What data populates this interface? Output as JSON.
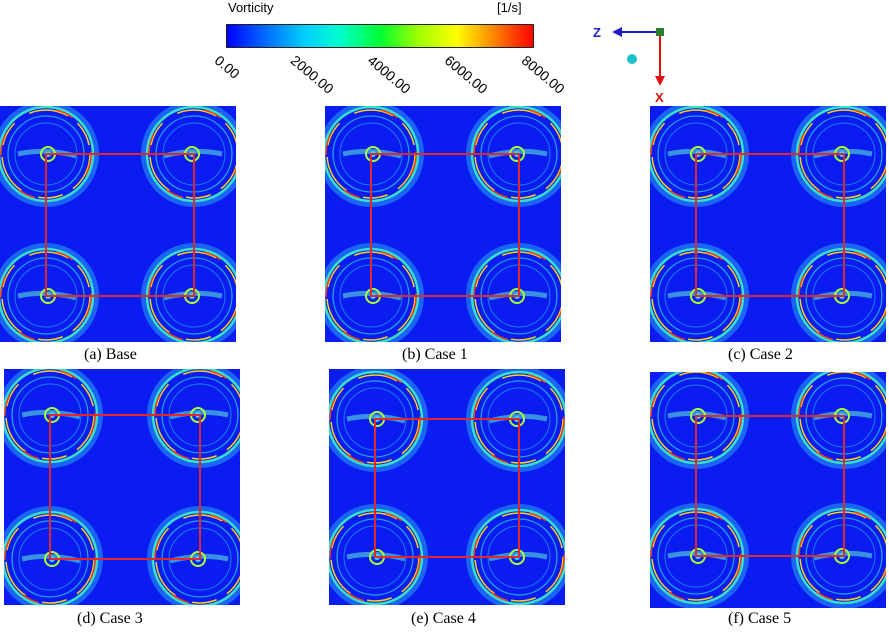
{
  "colorbar": {
    "title": "Vorticity",
    "unit": "[1/s]",
    "ticks": [
      "0.00",
      "2000.00",
      "4000.00",
      "6000.00",
      "8000.00"
    ]
  },
  "axes": {
    "z": "Z",
    "x": "X",
    "z_color": "#1f1fbf",
    "x_color": "#e01010"
  },
  "colors": {
    "background": "#0a1cf0",
    "frame": "#e0282d"
  },
  "panels": [
    {
      "caption": "(a) Base"
    },
    {
      "caption": "(b) Case 1"
    },
    {
      "caption": "(c) Case 2"
    },
    {
      "caption": "(d) Case 3"
    },
    {
      "caption": "(e) Case 4"
    },
    {
      "caption": "(f) Case 5"
    }
  ]
}
